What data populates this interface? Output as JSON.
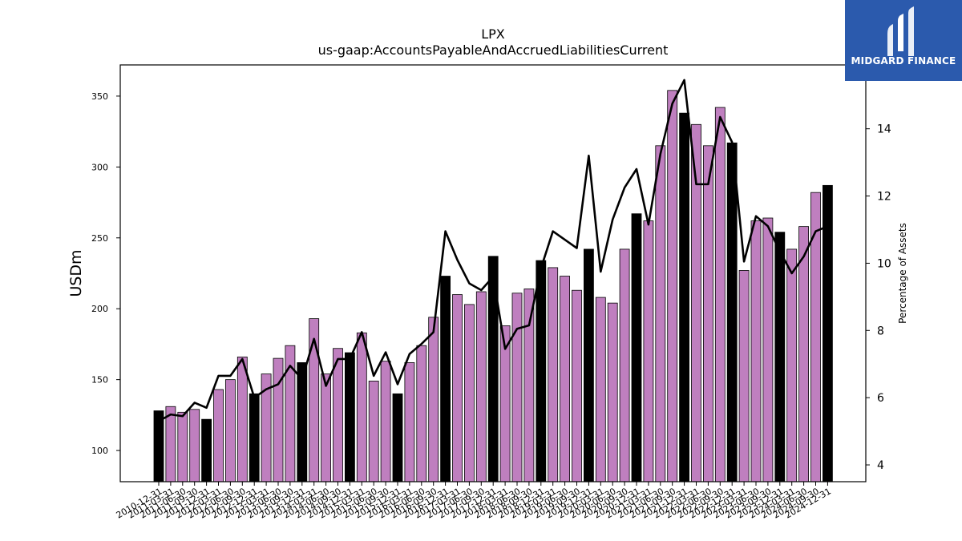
{
  "chart_data": {
    "type": "bar",
    "title": "LPX",
    "subtitle": "us-gaap:AccountsPayableAndAccruedLiabilitiesCurrent",
    "ylabel": "USDm",
    "y2label": "Percentage of Assets",
    "ylim": [
      78,
      372
    ],
    "y2lim": [
      3.5,
      15.9
    ],
    "yticks": [
      100,
      150,
      200,
      250,
      300,
      350
    ],
    "y2ticks": [
      4,
      6,
      8,
      10,
      12,
      14
    ],
    "categories": [
      "2010-12-31",
      "2011-03-31",
      "2011-06-30",
      "2011-09-30",
      "2011-12-31",
      "2012-03-31",
      "2012-06-30",
      "2012-09-30",
      "2012-12-31",
      "2013-03-31",
      "2013-06-30",
      "2013-09-30",
      "2013-12-31",
      "2014-03-31",
      "2014-06-30",
      "2014-09-30",
      "2014-12-31",
      "2015-03-31",
      "2015-06-30",
      "2015-09-30",
      "2015-12-31",
      "2016-03-31",
      "2016-06-30",
      "2016-09-30",
      "2016-12-31",
      "2017-03-31",
      "2017-06-30",
      "2017-09-30",
      "2017-12-31",
      "2018-03-31",
      "2018-06-30",
      "2018-09-30",
      "2018-12-31",
      "2019-03-31",
      "2019-06-30",
      "2019-09-30",
      "2019-12-31",
      "2020-03-31",
      "2020-06-30",
      "2020-09-30",
      "2020-12-31",
      "2021-03-31",
      "2021-06-30",
      "2021-09-30",
      "2021-12-31",
      "2022-03-31",
      "2022-06-30",
      "2022-09-30",
      "2022-12-31",
      "2023-03-31",
      "2023-06-30",
      "2023-09-30",
      "2023-12-31",
      "2024-03-31",
      "2024-06-30",
      "2024-09-30",
      "2024-12-31"
    ],
    "series": [
      {
        "type": "bar",
        "axis": "left",
        "values": [
          128,
          131,
          127,
          129,
          122,
          143,
          150,
          166,
          140,
          154,
          165,
          174,
          162,
          193,
          154,
          172,
          169,
          183,
          149,
          163,
          140,
          162,
          174,
          194,
          223,
          210,
          203,
          212,
          237,
          188,
          211,
          214,
          234,
          229,
          223,
          213,
          242,
          208,
          204,
          242,
          267,
          262,
          315,
          354,
          338,
          330,
          315,
          342,
          317,
          227,
          262,
          264,
          254,
          242,
          258,
          282,
          287
        ],
        "year_end_color": "#000000",
        "color": "#bf7fbf"
      },
      {
        "type": "line",
        "axis": "right",
        "values": [
          5.3,
          5.5,
          5.45,
          5.85,
          5.7,
          6.65,
          6.65,
          7.15,
          6.0,
          6.25,
          6.4,
          6.95,
          6.55,
          7.75,
          6.35,
          7.15,
          7.15,
          7.95,
          6.65,
          7.35,
          6.4,
          7.3,
          7.6,
          7.95,
          10.95,
          10.1,
          9.4,
          9.2,
          9.6,
          7.45,
          8.05,
          8.15,
          9.85,
          10.95,
          10.7,
          10.45,
          13.2,
          9.75,
          11.3,
          12.25,
          12.8,
          11.15,
          13.25,
          14.75,
          15.45,
          12.35,
          12.35,
          14.35,
          13.6,
          10.05,
          11.4,
          11.1,
          10.35,
          9.7,
          10.2,
          10.95,
          11.1
        ],
        "color": "#000000"
      }
    ]
  },
  "logo": {
    "text": "MIDGARD FINANCE",
    "color": "#2b5aad"
  }
}
